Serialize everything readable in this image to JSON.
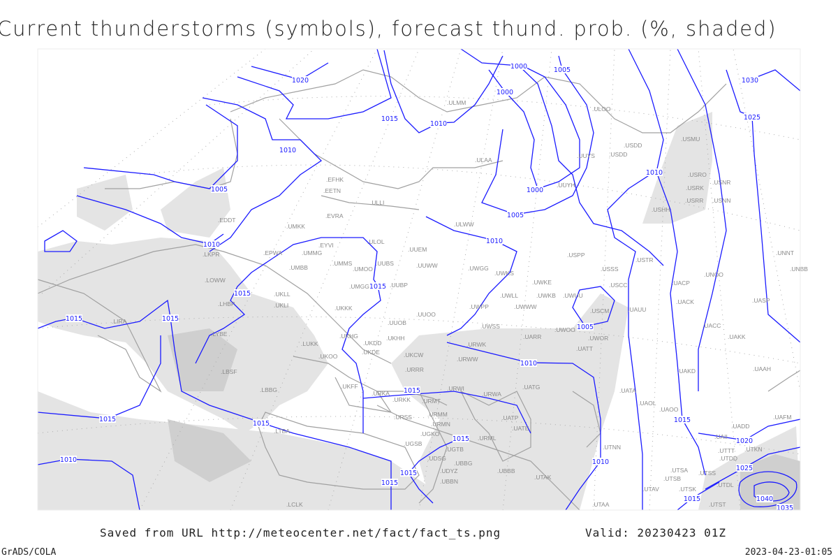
{
  "title": "Current thunderstorms (symbols), forecast thund. prob. (%, shaded)",
  "footer": {
    "saved_from": "Saved from URL http://meteocenter.net/fact/fact_ts.png",
    "valid": "Valid: 20230423 01Z",
    "software": "GrADS/COLA",
    "generated": "2023-04-23-01:05"
  },
  "colors": {
    "isobar": "#1a1aff",
    "coastline": "#a0a0a0",
    "station_label": "#8a8a8a",
    "probability_shading_light": "#e4e4e4",
    "probability_shading_dark": "#cfcfcf"
  },
  "stations": [
    "ULAA",
    "ULOO",
    "UUYS",
    "UUYH",
    "USDD",
    "USMU",
    "USRO",
    "USRK",
    "USNR",
    "USRR",
    "USNN",
    "USHH",
    "ULWW",
    "UUEM",
    "UUWW",
    "UWGG",
    "UWKS",
    "USPP",
    "USSS",
    "USTR",
    "UNOO",
    "UNNT",
    "UNBB",
    "UWKE",
    "UWLL",
    "UWKB",
    "UWUU",
    "USCC",
    "UACP",
    "UACK",
    "UASP",
    "UWPP",
    "UWWW",
    "USCM",
    "UAUU",
    "UACC",
    "UAKK",
    "UWSS",
    "UWOO",
    "UWOR",
    "UARR",
    "URWK",
    "UATT",
    "URWW",
    "UAKD",
    "UAAH",
    "UATA",
    "UATG",
    "URWI",
    "URWA",
    "UAOL",
    "UAOO",
    "UAFM",
    "UADD",
    "UATP",
    "UATE",
    "URML",
    "UAII",
    "UTKN",
    "UTTT",
    "UTDD",
    "UTNN",
    "UBBB",
    "UTAK",
    "UTSA",
    "UTSS",
    "UTSB",
    "UTAV",
    "UTSK",
    "UTDL",
    "UTAA",
    "UTST",
    "EFHK",
    "EETN",
    "ULLI",
    "EVRA",
    "ULOL",
    "EYVI",
    "UMKK",
    "EDDT",
    "LKPR",
    "EPWA",
    "UMMG",
    "UMBB",
    "UMMS",
    "UMOO",
    "UUBS",
    "LOWW",
    "UMGG",
    "UUBP",
    "UKLL",
    "LHBP",
    "UKLI",
    "LIRA",
    "UKKK",
    "UUOO",
    "UUOB",
    "LYBE",
    "UKHG",
    "UKDD",
    "UKHH",
    "LUKK",
    "UKOO",
    "UKDE",
    "UKCW",
    "URRR",
    "LBSF",
    "LBBG",
    "UKFF",
    "URKA",
    "URKK",
    "URMT",
    "URSS",
    "URMM",
    "URMN",
    "UGSB",
    "UGKO",
    "UGTB",
    "UDSG",
    "UBBG",
    "UDYZ",
    "UBBN",
    "LTBA",
    "LCLK",
    "ULMM",
    "USDD"
  ],
  "isobar_labels": [
    "1020",
    "1015",
    "1010",
    "1010",
    "1005",
    "1010",
    "1015",
    "1015",
    "1015",
    "1015",
    "1015",
    "1010",
    "1015",
    "1015",
    "1015",
    "1015",
    "1015",
    "1010",
    "1000",
    "1005",
    "1000",
    "1000",
    "1005",
    "1010",
    "1030",
    "1025",
    "1010",
    "1005",
    "1010",
    "1015",
    "1020",
    "1025",
    "1015",
    "1040",
    "1035"
  ]
}
